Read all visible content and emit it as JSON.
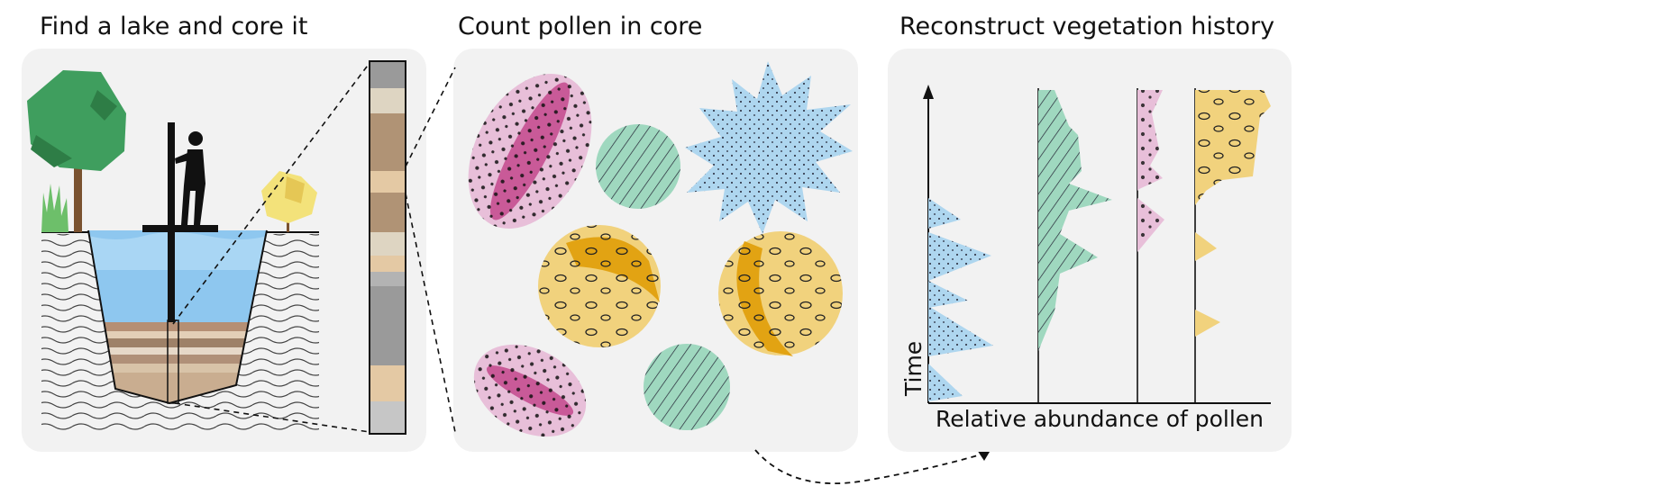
{
  "panels": {
    "core": {
      "title": "Find a lake and core it"
    },
    "count": {
      "title": "Count pollen in core"
    },
    "reconstruct": {
      "title": "Reconstruct vegetation history",
      "y_axis_label": "Time",
      "x_axis_label": "Relative abundance of pollen"
    }
  },
  "pollen_types": [
    {
      "icon": "spiky-pollen-icon",
      "color": "#aed6ef"
    },
    {
      "icon": "striped-pollen-icon",
      "color": "#9fd8bf"
    },
    {
      "icon": "elongate-pollen-icon",
      "color": "#e8bfd9"
    },
    {
      "icon": "sac-pollen-icon",
      "color": "#f1d27d"
    }
  ],
  "colors": {
    "panel_bg": "#f2f2f2",
    "water": "#8ec7ef",
    "tree": "#3fa262",
    "sediment": "#c7a184"
  }
}
